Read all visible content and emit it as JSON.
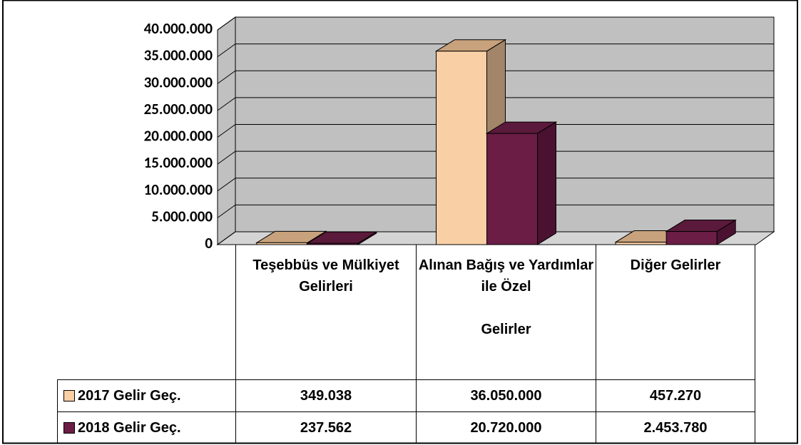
{
  "chart_data": {
    "type": "bar3d",
    "categories": [
      "Teşebbüs ve Mülkiyet Gelirleri",
      "Alınan Bağış ve Yardımlar ile Özel\n\nGelirler",
      "Diğer Gelirler"
    ],
    "series": [
      {
        "name": "2017 Gelir Geç.",
        "color": "#f9cfa5",
        "side": "#a3856a",
        "top": "#c8a27c",
        "values": [
          349038,
          36050000,
          457270
        ],
        "value_labels": [
          "349.038",
          "36.050.000",
          "457.270"
        ]
      },
      {
        "name": "2018 Gelir Geç.",
        "color": "#6b1d45",
        "side": "#4a1230",
        "top": "#5b1a3b",
        "values": [
          237562,
          20720000,
          2453780
        ],
        "value_labels": [
          "237.562",
          "20.720.000",
          "2.453.780"
        ]
      }
    ],
    "ylim": [
      0,
      40000000
    ],
    "yticks": [
      0,
      {
        "value": 5000000,
        "label": "5.000.000"
      },
      {
        "value": 10000000,
        "label": "10.000.000"
      },
      {
        "value": 15000000,
        "label": "15.000.000"
      },
      {
        "value": 20000000,
        "label": "20.000.000"
      },
      {
        "value": 25000000,
        "label": "25.000.000"
      },
      {
        "value": 30000000,
        "label": "30.000.000"
      },
      {
        "value": 35000000,
        "label": "35.000.000"
      },
      {
        "value": 40000000,
        "label": "40.000.000"
      }
    ],
    "grid": true
  }
}
